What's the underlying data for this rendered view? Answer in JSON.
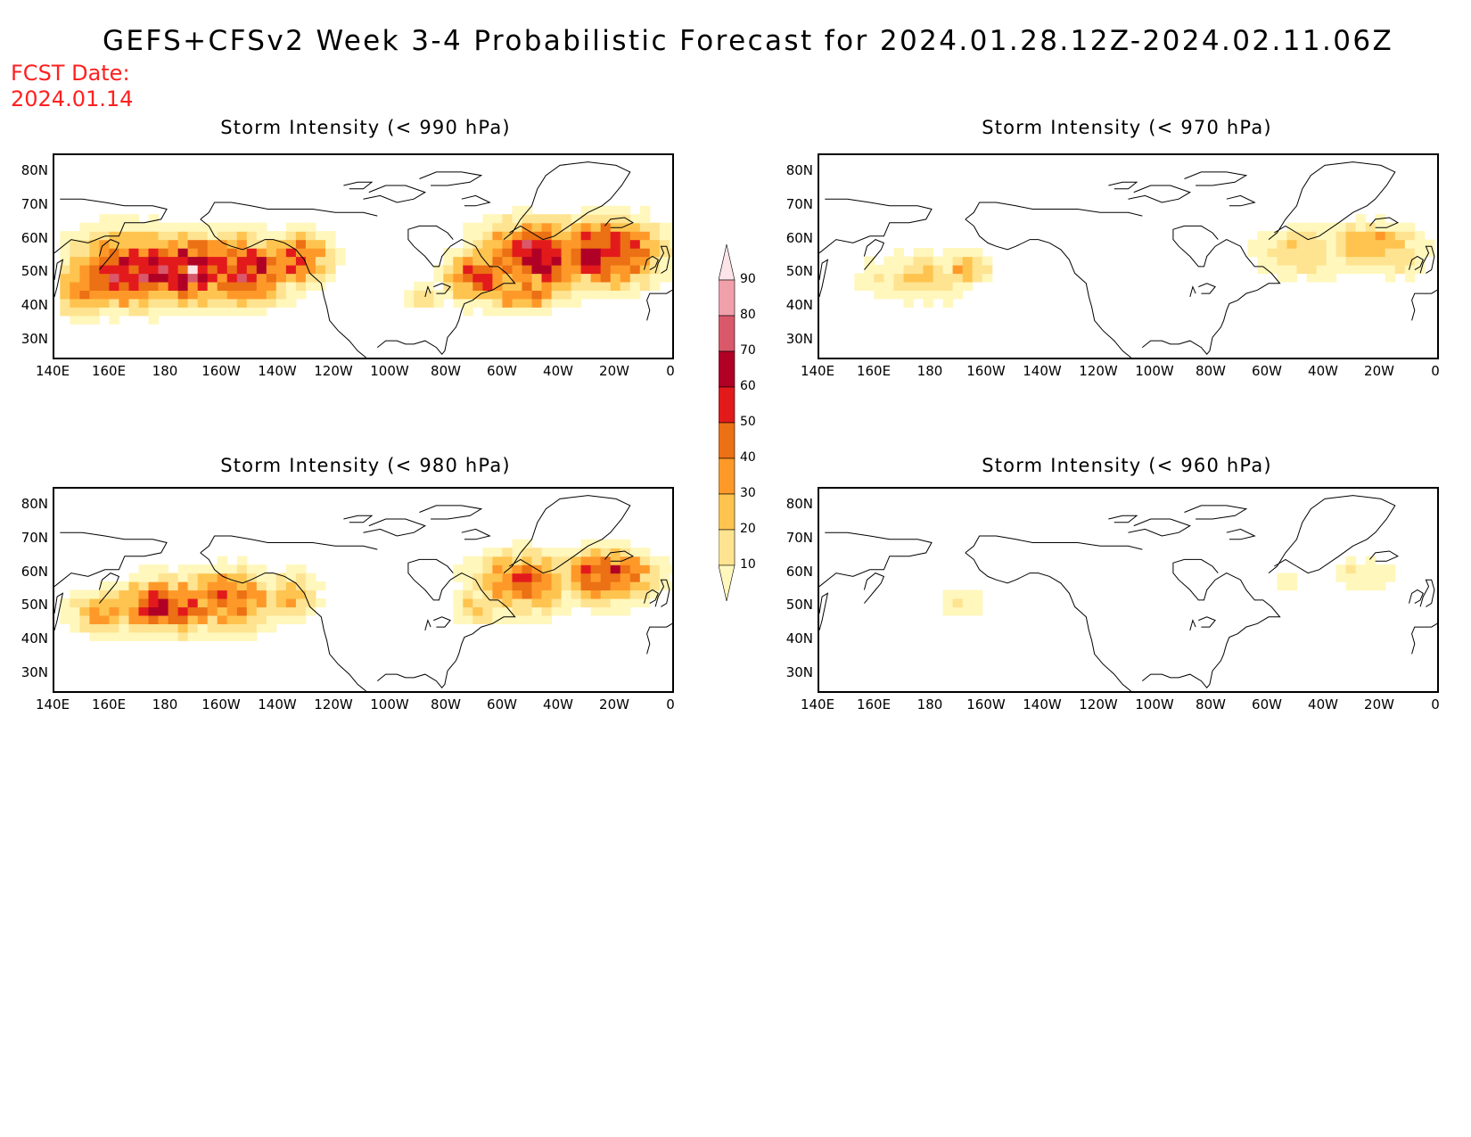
{
  "title": "GEFS+CFSv2 Week 3-4 Probabilistic Forecast for 2024.01.28.12Z-2024.02.11.06Z",
  "fcst_date_label": "FCST Date:",
  "fcst_date": "2024.01.14",
  "colors": {
    "title": "#000000",
    "fcst_date": "#ff2020",
    "coast": "#000000",
    "levels": [
      "#fff7bc",
      "#fee391",
      "#fec44f",
      "#fe9929",
      "#ec7014",
      "#e31a1c",
      "#b10026",
      "#d9596b",
      "#f0a0ab",
      "#fce4e8"
    ]
  },
  "colorbar": {
    "levels": [
      10,
      20,
      30,
      40,
      50,
      60,
      70,
      80,
      90
    ],
    "labels": [
      "10",
      "20",
      "30",
      "40",
      "50",
      "60",
      "70",
      "80",
      "90"
    ]
  },
  "axes": {
    "lat_labels": [
      "80N",
      "70N",
      "60N",
      "50N",
      "40N",
      "30N"
    ],
    "lat_values": [
      80,
      70,
      60,
      50,
      40,
      30
    ],
    "lon_labels": [
      "140E",
      "160E",
      "180",
      "160W",
      "140W",
      "120W",
      "100W",
      "80W",
      "60W",
      "40W",
      "20W",
      "0"
    ],
    "lon_values": [
      140,
      160,
      180,
      200,
      220,
      240,
      260,
      280,
      300,
      320,
      340,
      360
    ],
    "lon_range": [
      140,
      360
    ],
    "lat_range": [
      25,
      85
    ]
  },
  "panels": [
    {
      "id": "p990",
      "title": "Storm Intensity (< 990 hPa)",
      "blobs": [
        {
          "lon": 148,
          "lat": 44,
          "rl": 10,
          "ra": 8,
          "amp": 55
        },
        {
          "lon": 165,
          "lat": 50,
          "rl": 20,
          "ra": 11,
          "amp": 78
        },
        {
          "lon": 185,
          "lat": 50,
          "rl": 20,
          "ra": 10,
          "amp": 82
        },
        {
          "lon": 205,
          "lat": 50,
          "rl": 18,
          "ra": 10,
          "amp": 75
        },
        {
          "lon": 225,
          "lat": 53,
          "rl": 12,
          "ra": 8,
          "amp": 60
        },
        {
          "lon": 290,
          "lat": 48,
          "rl": 12,
          "ra": 8,
          "amp": 65
        },
        {
          "lon": 310,
          "lat": 54,
          "rl": 20,
          "ra": 10,
          "amp": 80
        },
        {
          "lon": 335,
          "lat": 55,
          "rl": 20,
          "ra": 10,
          "amp": 76
        },
        {
          "lon": 305,
          "lat": 43,
          "rl": 18,
          "ra": 5,
          "amp": 55
        },
        {
          "lon": 270,
          "lat": 42,
          "rl": 6,
          "ra": 4,
          "amp": 30
        }
      ]
    },
    {
      "id": "p970",
      "title": "Storm Intensity (< 970 hPa)",
      "blobs": [
        {
          "lon": 175,
          "lat": 48,
          "rl": 22,
          "ra": 8,
          "amp": 30
        },
        {
          "lon": 190,
          "lat": 50,
          "rl": 10,
          "ra": 5,
          "amp": 38
        },
        {
          "lon": 310,
          "lat": 55,
          "rl": 18,
          "ra": 8,
          "amp": 32
        },
        {
          "lon": 335,
          "lat": 57,
          "rl": 18,
          "ra": 7,
          "amp": 42
        },
        {
          "lon": 345,
          "lat": 53,
          "rl": 10,
          "ra": 6,
          "amp": 28
        }
      ]
    },
    {
      "id": "p980",
      "title": "Storm Intensity (< 980 hPa)",
      "blobs": [
        {
          "lon": 155,
          "lat": 47,
          "rl": 12,
          "ra": 7,
          "amp": 40
        },
        {
          "lon": 178,
          "lat": 49,
          "rl": 22,
          "ra": 8,
          "amp": 68
        },
        {
          "lon": 200,
          "lat": 51,
          "rl": 18,
          "ra": 9,
          "amp": 60
        },
        {
          "lon": 222,
          "lat": 52,
          "rl": 10,
          "ra": 7,
          "amp": 40
        },
        {
          "lon": 305,
          "lat": 56,
          "rl": 18,
          "ra": 9,
          "amp": 58
        },
        {
          "lon": 335,
          "lat": 58,
          "rl": 18,
          "ra": 8,
          "amp": 66
        },
        {
          "lon": 290,
          "lat": 49,
          "rl": 10,
          "ra": 6,
          "amp": 32
        }
      ]
    },
    {
      "id": "p960",
      "title": "Storm Intensity (< 960 hPa)",
      "blobs": [
        {
          "lon": 188,
          "lat": 50,
          "rl": 10,
          "ra": 6,
          "amp": 18
        },
        {
          "lon": 305,
          "lat": 56,
          "rl": 7,
          "ra": 4,
          "amp": 16
        },
        {
          "lon": 332,
          "lat": 58,
          "rl": 12,
          "ra": 5,
          "amp": 24
        }
      ]
    }
  ]
}
